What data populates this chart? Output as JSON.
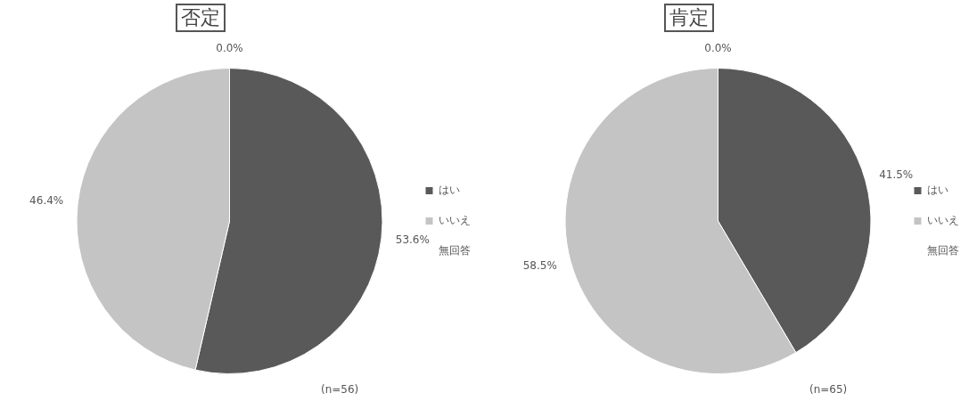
{
  "chart_data": [
    {
      "type": "pie",
      "title": "否定",
      "categories": [
        "はい",
        "いいえ",
        "無回答"
      ],
      "values": [
        53.6,
        46.4,
        0.0
      ],
      "value_labels": [
        "53.6%",
        "46.4%",
        "0.0%"
      ],
      "colors": [
        "#595959",
        "#c4c4c4",
        "#ffffff"
      ],
      "legend": "right",
      "annotations": [
        "(n=56)"
      ]
    },
    {
      "type": "pie",
      "title": "肯定",
      "categories": [
        "はい",
        "いいえ",
        "無回答"
      ],
      "values": [
        41.5,
        58.5,
        0.0
      ],
      "value_labels": [
        "41.5%",
        "58.5%",
        "0.0%"
      ],
      "colors": [
        "#595959",
        "#c4c4c4",
        "#ffffff"
      ],
      "legend": "right",
      "annotations": [
        "(n=65)"
      ]
    }
  ]
}
